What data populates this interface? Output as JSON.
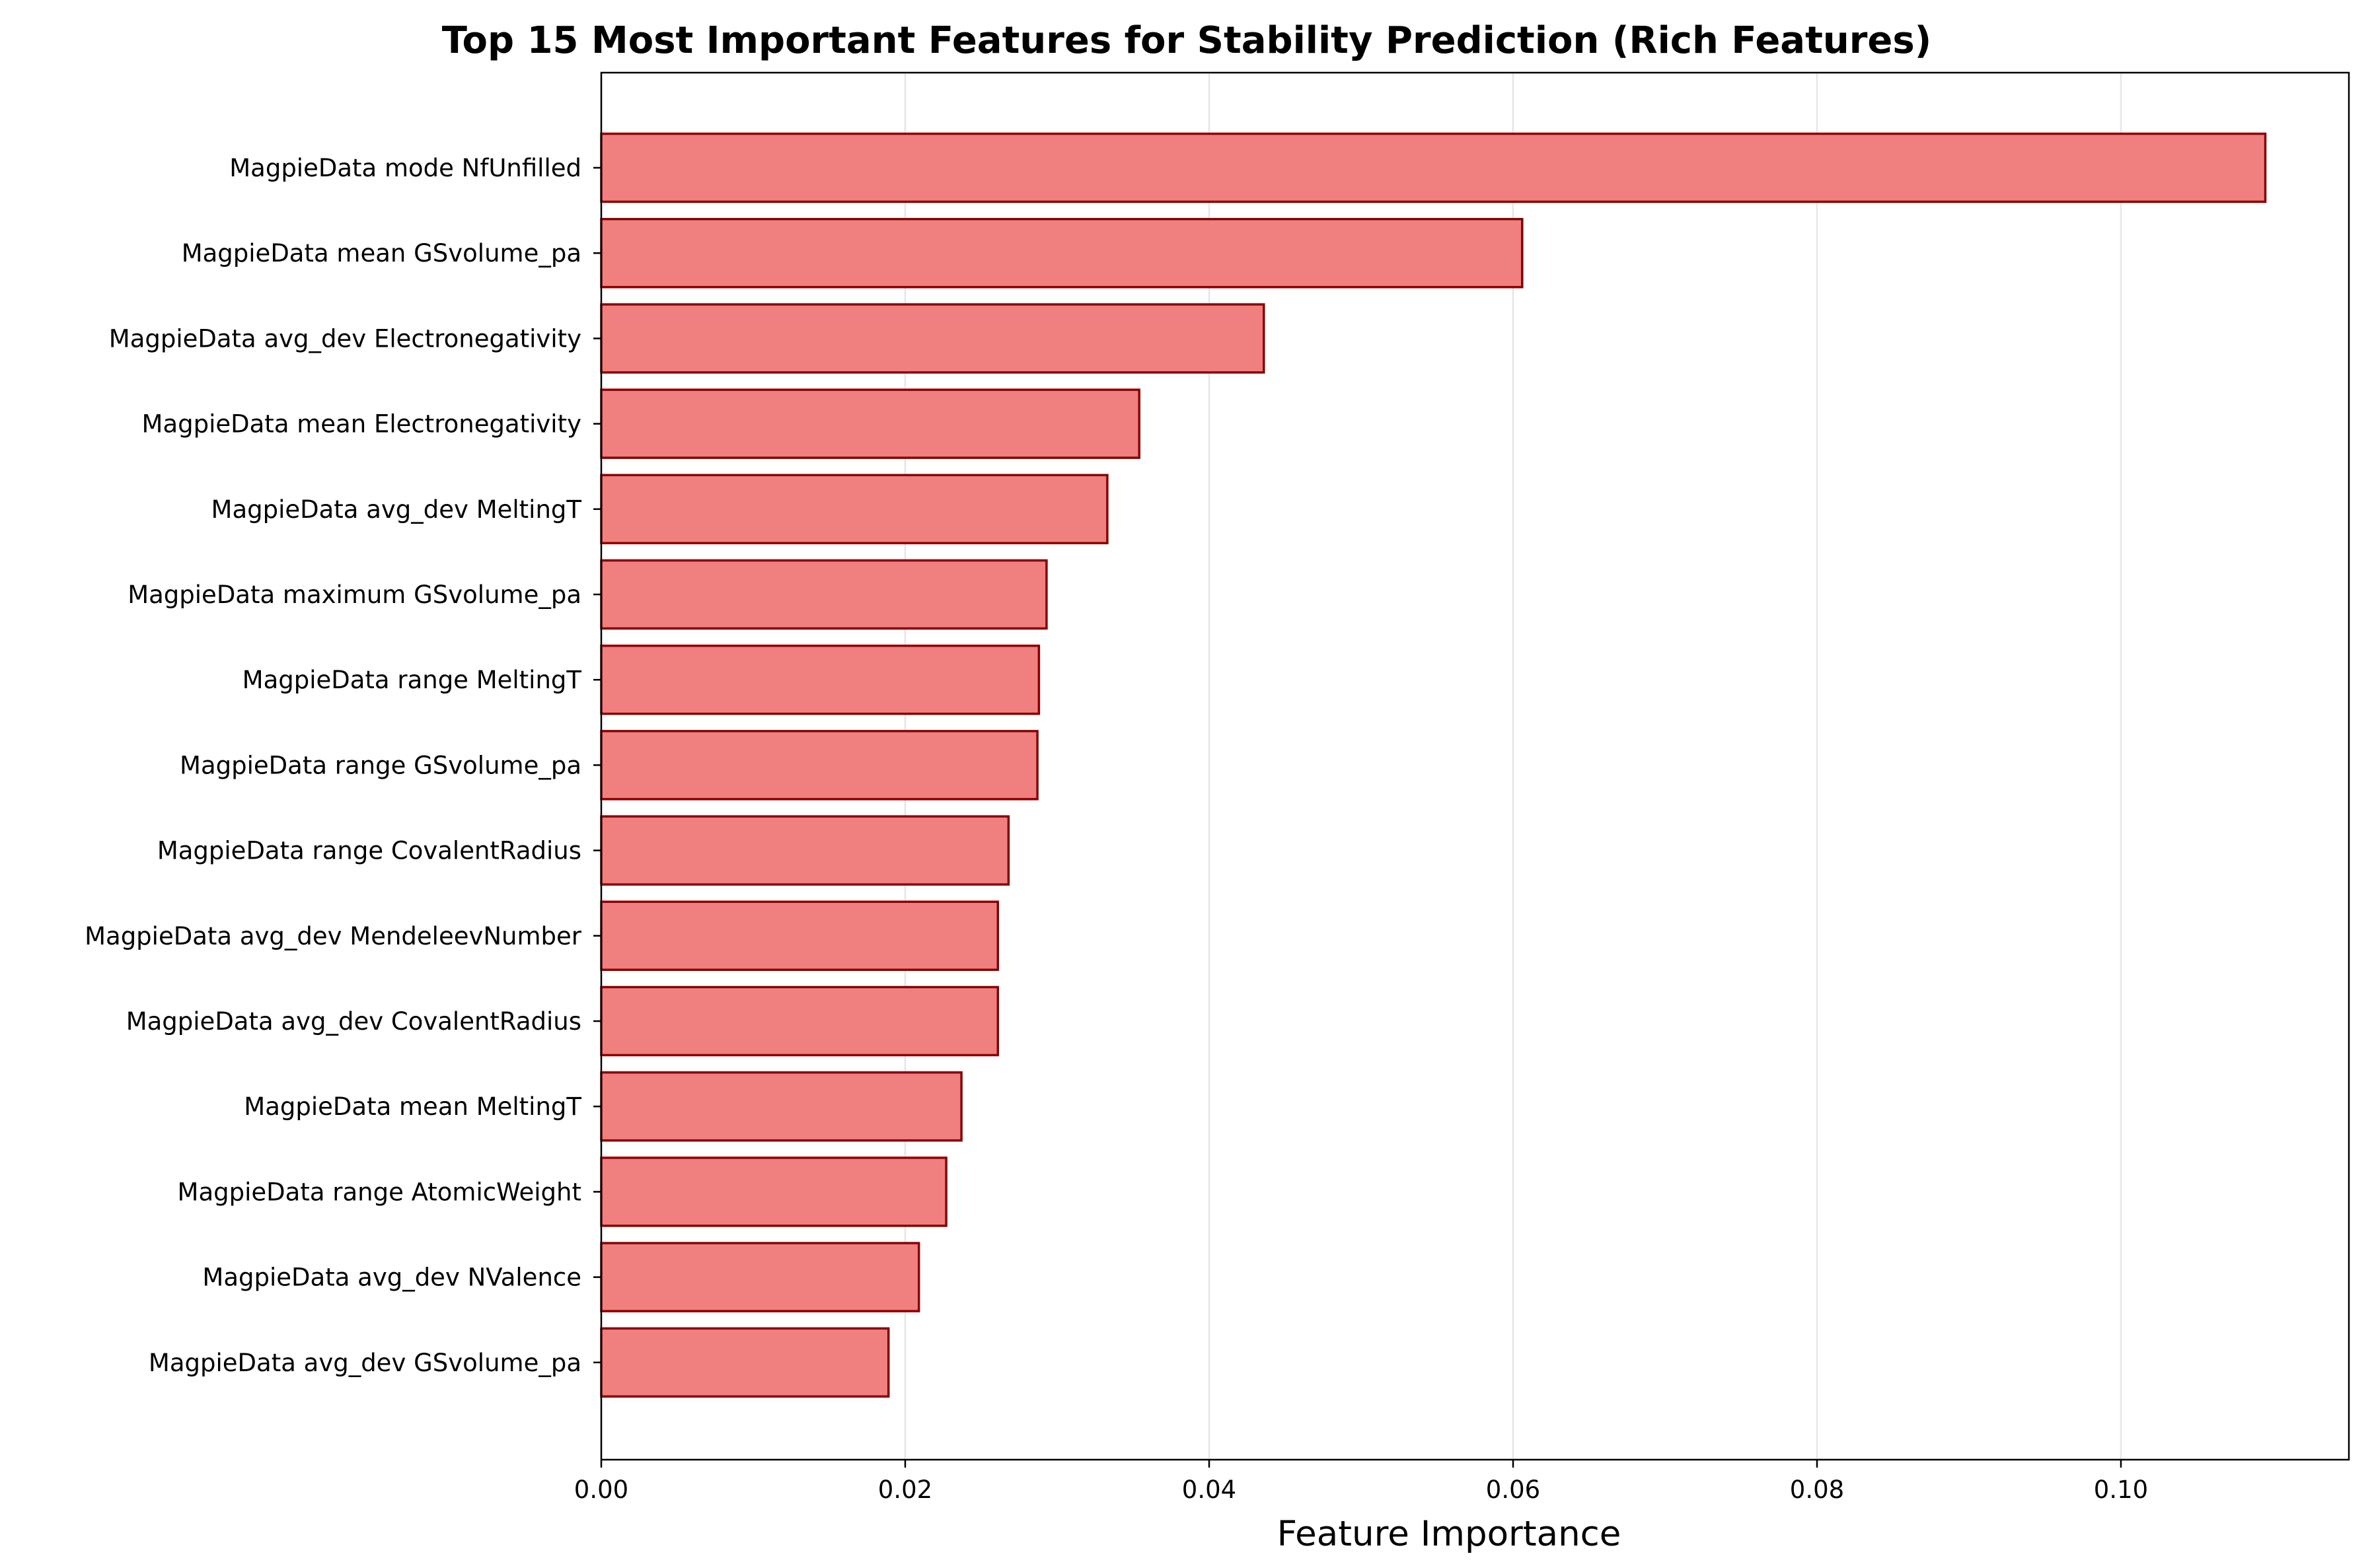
{
  "chart_data": {
    "type": "bar",
    "orientation": "horizontal",
    "title": "Top 15 Most Important Features for Stability Prediction (Rich Features)",
    "xlabel": "Feature Importance",
    "ylabel": "",
    "xlim": [
      0,
      0.115
    ],
    "xticks": [
      0.0,
      0.02,
      0.04,
      0.06,
      0.08,
      0.1
    ],
    "xtick_labels": [
      "0.00",
      "0.02",
      "0.04",
      "0.06",
      "0.08",
      "0.10"
    ],
    "grid": "x-axis vertical lines",
    "bar_color": "#f08080",
    "edge_color": "#8b0000",
    "categories": [
      "MagpieData mode NfUnfilled",
      "MagpieData mean GSvolume_pa",
      "MagpieData avg_dev Electronegativity",
      "MagpieData mean Electronegativity",
      "MagpieData avg_dev MeltingT",
      "MagpieData maximum GSvolume_pa",
      "MagpieData range MeltingT",
      "MagpieData range GSvolume_pa",
      "MagpieData range CovalentRadius",
      "MagpieData avg_dev MendeleevNumber",
      "MagpieData avg_dev CovalentRadius",
      "MagpieData mean MeltingT",
      "MagpieData range AtomicWeight",
      "MagpieData avg_dev NValence",
      "MagpieData avg_dev GSvolume_pa"
    ],
    "values": [
      0.1095,
      0.0606,
      0.0436,
      0.0354,
      0.0333,
      0.0293,
      0.0288,
      0.0287,
      0.0268,
      0.0261,
      0.0261,
      0.0237,
      0.0227,
      0.0209,
      0.0189
    ]
  }
}
